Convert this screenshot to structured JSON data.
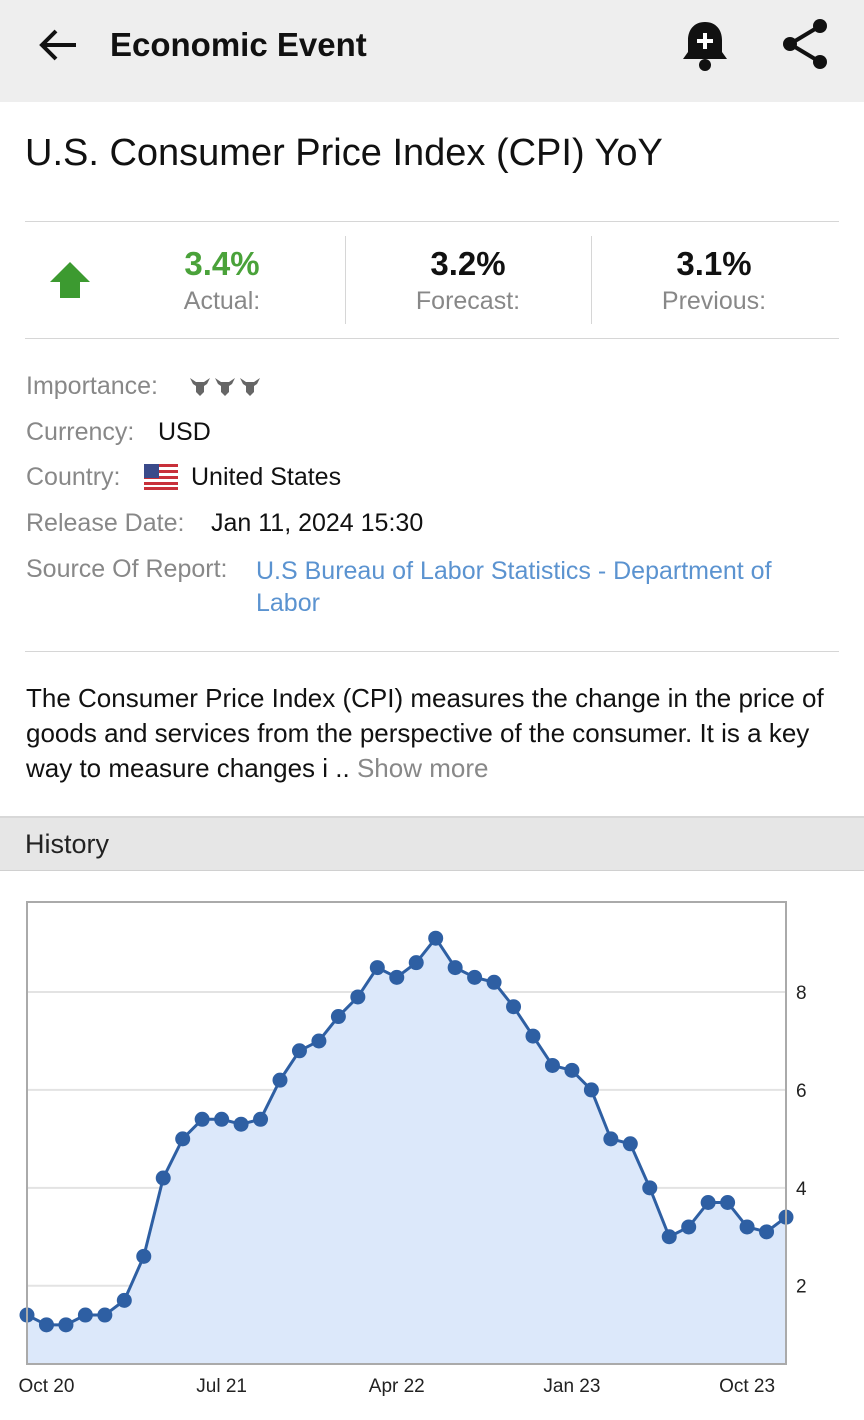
{
  "header": {
    "title": "Economic Event"
  },
  "event": {
    "title": "U.S. Consumer Price Index (CPI) YoY",
    "stats": [
      {
        "value": "3.4%",
        "label": "Actual:"
      },
      {
        "value": "3.2%",
        "label": "Forecast:"
      },
      {
        "value": "3.1%",
        "label": "Previous:"
      }
    ],
    "details": [
      {
        "label": "Importance:"
      },
      {
        "label": "Currency:",
        "value": "USD"
      },
      {
        "label": "Country:",
        "value": "United States"
      },
      {
        "label": "Release Date:",
        "value": "Jan 11, 2024 15:30"
      },
      {
        "label": "Source Of Report:",
        "value": "U.S Bureau of Labor Statistics - Department of Labor"
      }
    ],
    "description": "The Consumer Price Index (CPI) measures the change in the price of goods and services from the perspective of the consumer. It is a key way to measure changes i ..",
    "show_more": "Show more"
  },
  "history": {
    "title": "History"
  },
  "chart_data": {
    "type": "line",
    "categories": [
      null,
      "Oct 20",
      null,
      null,
      null,
      null,
      null,
      null,
      null,
      null,
      "Jul 21",
      null,
      null,
      null,
      null,
      null,
      null,
      null,
      null,
      "Apr 22",
      null,
      null,
      null,
      null,
      null,
      null,
      null,
      null,
      "Jan 23",
      null,
      null,
      null,
      null,
      null,
      null,
      null,
      null,
      "Oct 23",
      null,
      null
    ],
    "series": [
      {
        "color": "#2e5fa3",
        "values": [
          1.4,
          1.2,
          1.2,
          1.4,
          1.4,
          1.7,
          2.6,
          4.2,
          5.0,
          5.4,
          5.4,
          5.3,
          5.4,
          6.2,
          6.8,
          7.0,
          7.5,
          7.9,
          8.5,
          8.3,
          8.6,
          9.1,
          8.5,
          8.3,
          8.2,
          7.7,
          7.1,
          6.5,
          6.4,
          6.0,
          5.0,
          4.9,
          4.0,
          3.0,
          3.2,
          3.7,
          3.7,
          3.2,
          3.1,
          3.4
        ]
      }
    ],
    "ylim": [
      0.4,
      9.84
    ],
    "yticks": [
      2,
      4,
      6,
      8
    ],
    "grid": true,
    "area_color": "#dce8fa"
  }
}
